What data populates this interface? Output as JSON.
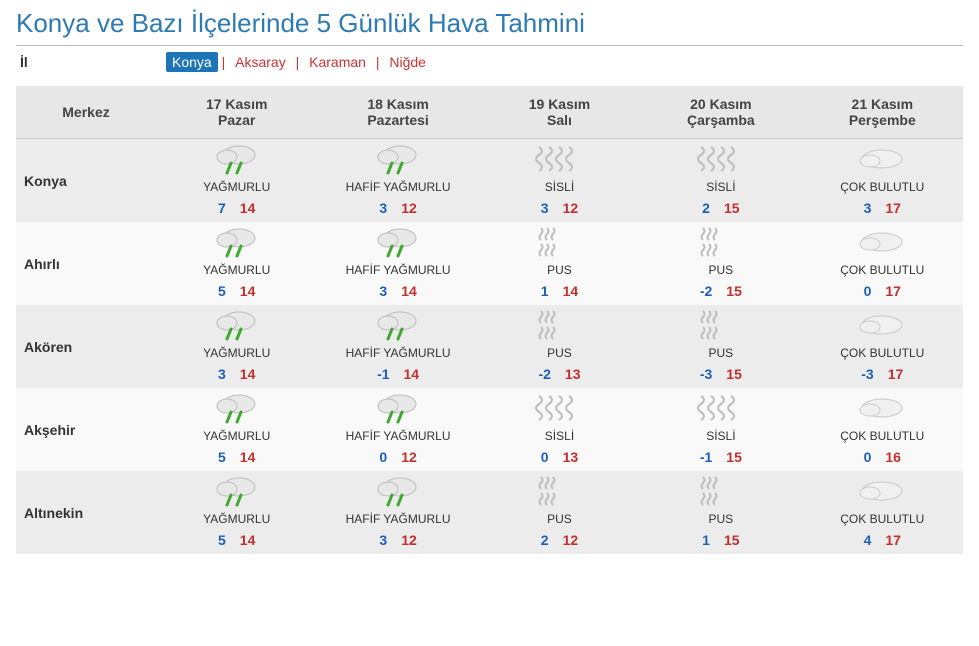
{
  "title": "Konya ve Bazı İlçelerinde 5 Günlük Hava Tahmini",
  "tabs_label": "İl",
  "tabs": [
    "Konya",
    "Aksaray",
    "Karaman",
    "Niğde"
  ],
  "active_tab": "Konya",
  "header_loc": "Merkez",
  "days": [
    {
      "date": "17 Kasım",
      "dow": "Pazar"
    },
    {
      "date": "18 Kasım",
      "dow": "Pazartesi"
    },
    {
      "date": "19 Kasım",
      "dow": "Salı"
    },
    {
      "date": "20 Kasım",
      "dow": "Çarşamba"
    },
    {
      "date": "21 Kasım",
      "dow": "Perşembe"
    }
  ],
  "cond_labels": {
    "rain": "YAĞMURLU",
    "lrain": "HAFİF YAĞMURLU",
    "fog": "SİSLİ",
    "mist": "PUS",
    "cloud": "ÇOK BULUTLU"
  },
  "icon_types": {
    "rain": "rain",
    "lrain": "rain",
    "fog": "fog",
    "mist": "mist",
    "cloud": "cloud"
  },
  "colors": {
    "title": "#2e7bb3",
    "tab_active_bg": "#1d74b6",
    "tab_link": "#c33",
    "lo": "#1d5fb6",
    "hi": "#c52e2e",
    "header_bg": "#e7e7e7",
    "row_g1": "#ececec",
    "row_g2": "#f9f9f9"
  },
  "rows": [
    {
      "loc": "Konya",
      "cells": [
        {
          "c": "rain",
          "lo": 7,
          "hi": 14
        },
        {
          "c": "lrain",
          "lo": 3,
          "hi": 12
        },
        {
          "c": "fog",
          "lo": 3,
          "hi": 12
        },
        {
          "c": "fog",
          "lo": 2,
          "hi": 15
        },
        {
          "c": "cloud",
          "lo": 3,
          "hi": 17
        }
      ]
    },
    {
      "loc": "Ahırlı",
      "cells": [
        {
          "c": "rain",
          "lo": 5,
          "hi": 14
        },
        {
          "c": "lrain",
          "lo": 3,
          "hi": 14
        },
        {
          "c": "mist",
          "lo": 1,
          "hi": 14
        },
        {
          "c": "mist",
          "lo": -2,
          "hi": 15
        },
        {
          "c": "cloud",
          "lo": 0,
          "hi": 17
        }
      ]
    },
    {
      "loc": "Akören",
      "cells": [
        {
          "c": "rain",
          "lo": 3,
          "hi": 14
        },
        {
          "c": "lrain",
          "lo": -1,
          "hi": 14
        },
        {
          "c": "mist",
          "lo": -2,
          "hi": 13
        },
        {
          "c": "mist",
          "lo": -3,
          "hi": 15
        },
        {
          "c": "cloud",
          "lo": -3,
          "hi": 17
        }
      ]
    },
    {
      "loc": "Akşehir",
      "cells": [
        {
          "c": "rain",
          "lo": 5,
          "hi": 14
        },
        {
          "c": "lrain",
          "lo": 0,
          "hi": 12
        },
        {
          "c": "fog",
          "lo": 0,
          "hi": 13
        },
        {
          "c": "fog",
          "lo": -1,
          "hi": 15
        },
        {
          "c": "cloud",
          "lo": 0,
          "hi": 16
        }
      ]
    },
    {
      "loc": "Altınekin",
      "cells": [
        {
          "c": "rain",
          "lo": 5,
          "hi": 14
        },
        {
          "c": "lrain",
          "lo": 3,
          "hi": 12
        },
        {
          "c": "mist",
          "lo": 2,
          "hi": 12
        },
        {
          "c": "mist",
          "lo": 1,
          "hi": 15
        },
        {
          "c": "cloud",
          "lo": 4,
          "hi": 17
        }
      ]
    }
  ]
}
